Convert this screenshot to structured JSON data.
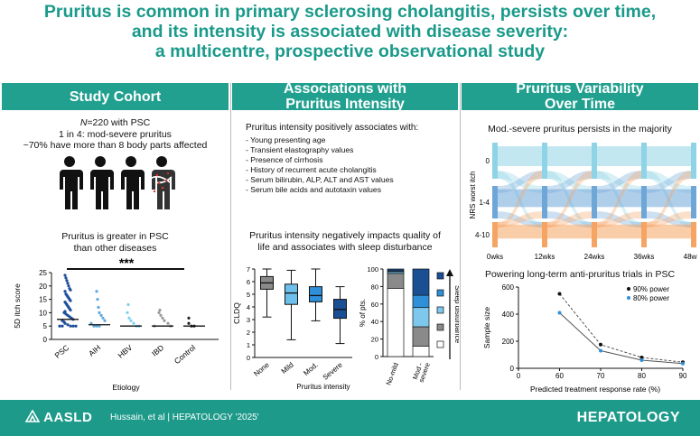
{
  "title": {
    "line1": "Pruritus is common in primary sclerosing cholangitis, persists over time,",
    "line2": "and its intensity is associated with disease severity:",
    "line3": "a multicentre, prospective observational study"
  },
  "cohort": {
    "header": "Study Cohort",
    "n_prefix": "N",
    "n_text": "=220 with PSC",
    "line2": "1 in 4: mod-severe pruritus",
    "line3": "~70% have more than 8 body parts affected",
    "chart_title1": "Pruritus is greater in PSC",
    "chart_title2": "than other diseases",
    "significance": "***"
  },
  "associations": {
    "header1": "Associations with",
    "header2": "Pruritus Intensity",
    "positive_title": "Pruritus intensity positively associates with:",
    "positive_items": [
      "- Young presenting age",
      "- Transient elastography values",
      "- Presence of cirrhosis",
      "- History of recurrent acute cholangitis",
      "- Serum bilirubin, ALP, ALT and AST values",
      "- Serum bile acids and autotaxin values"
    ],
    "negative_title1": "Pruritus intensity negatively impacts quality of",
    "negative_title2": "life and associates with sleep disturbance"
  },
  "variability": {
    "header1": "Pruritus Variability",
    "header2": "Over Time",
    "sankey_title": "Mod.-severe pruritus persists in the majority",
    "power_title": "Powering long-term anti-pruritus trials in PSC"
  },
  "footer": {
    "logo": "AASLD",
    "citation": "Hussain, et al  |  HEPATOLOGY '2025'",
    "journal": "HEPATOLOGY"
  },
  "chart_data": [
    {
      "type": "scatter",
      "name": "5D itch score by etiology",
      "ylabel": "5D itch score",
      "xlabel": "Etiology",
      "ylim": [
        0,
        25
      ],
      "yticks": [
        "0",
        "5",
        "10",
        "15",
        "20",
        "25"
      ],
      "categories": [
        "PSC",
        "AIH",
        "HBV",
        "IBD",
        "Control"
      ],
      "colors": [
        "#1f4e9c",
        "#5fa8e0",
        "#7fd0ea",
        "#9a9a9a",
        "#222222"
      ],
      "medians": [
        7.5,
        5.5,
        5,
        5,
        5
      ],
      "points": [
        [
          24,
          23,
          22,
          21,
          20,
          19,
          18.5,
          18,
          17,
          16.5,
          16,
          15.5,
          15,
          14.5,
          14,
          13.5,
          13,
          12.5,
          12,
          11.5,
          11,
          10.5,
          10,
          9.5,
          9,
          8.5,
          8,
          7.5,
          7,
          6.5,
          6,
          5.5,
          5,
          5,
          5,
          5,
          5
        ],
        [
          18,
          15,
          12,
          10,
          9,
          8,
          7,
          6,
          5,
          5,
          5
        ],
        [
          13,
          10,
          8,
          7,
          6,
          5,
          5
        ],
        [
          11,
          10,
          9,
          8,
          7,
          6,
          5,
          5
        ],
        [
          8,
          6,
          5,
          5
        ]
      ]
    },
    {
      "type": "box",
      "ylabel": "CLDQ",
      "xlabel": "Pruritus intensity",
      "ylim": [
        0,
        7
      ],
      "yticks": [
        "0",
        "1",
        "2",
        "3",
        "4",
        "5",
        "6",
        "7"
      ],
      "categories": [
        "None",
        "Mild",
        "Mod.",
        "Severe"
      ],
      "colors": [
        "#8a8a8a",
        "#6ec0ec",
        "#2f8fd8",
        "#1b4f94"
      ],
      "boxes": [
        {
          "min": 3.2,
          "q1": 5.4,
          "median": 5.9,
          "q3": 6.4,
          "max": 7.0
        },
        {
          "min": 1.4,
          "q1": 4.2,
          "median": 5.1,
          "q3": 5.8,
          "max": 6.9
        },
        {
          "min": 2.9,
          "q1": 4.4,
          "median": 4.9,
          "q3": 5.6,
          "max": 7.0
        },
        {
          "min": 1.1,
          "q1": 3.1,
          "median": 3.8,
          "q3": 4.6,
          "max": 5.6
        }
      ]
    },
    {
      "type": "bar",
      "stacked": true,
      "ylabel": "% of pts.",
      "ylim": [
        0,
        100
      ],
      "yticks": [
        "0",
        "20",
        "40",
        "60",
        "80",
        "100"
      ],
      "categories": [
        "No-mild",
        "Mod - severe"
      ],
      "legend_label": "Sleep disturbance",
      "legend_colors": [
        "#1b4f94",
        "#2f8fd8",
        "#7ec8ee",
        "#8a8a8a",
        "#ffffff"
      ],
      "series": [
        {
          "color": "#ffffff",
          "values": [
            78,
            12
          ]
        },
        {
          "color": "#8a8a8a",
          "values": [
            17,
            22
          ]
        },
        {
          "color": "#7ec8ee",
          "values": [
            2,
            22
          ]
        },
        {
          "color": "#2f8fd8",
          "values": [
            1,
            14
          ]
        },
        {
          "color": "#1b4f94",
          "values": [
            2,
            30
          ]
        }
      ]
    },
    {
      "type": "sankey",
      "ylabel": "NRS worst itch",
      "categories": [
        "0wks",
        "12wks",
        "24wks",
        "36wks",
        "48wks"
      ],
      "levels": [
        "0",
        "1-4",
        "4-10"
      ],
      "level_colors": [
        "#8fd3e6",
        "#6ea6d8",
        "#f5a463"
      ]
    },
    {
      "type": "line",
      "xlabel": "Predicted treatment response rate (%)",
      "ylabel": "Sample size",
      "xlim": [
        50,
        90
      ],
      "ylim": [
        0,
        600
      ],
      "xticks": [
        "0",
        "60",
        "70",
        "80",
        "90"
      ],
      "yticks": [
        "0",
        "200",
        "400",
        "600"
      ],
      "x": [
        60,
        70,
        80,
        90
      ],
      "series": [
        {
          "name": "90% power",
          "color": "#111111",
          "dashed": true,
          "values": [
            550,
            175,
            80,
            45
          ]
        },
        {
          "name": "80% power",
          "color": "#2f8fd8",
          "dashed": false,
          "values": [
            410,
            130,
            60,
            35
          ]
        }
      ]
    }
  ]
}
